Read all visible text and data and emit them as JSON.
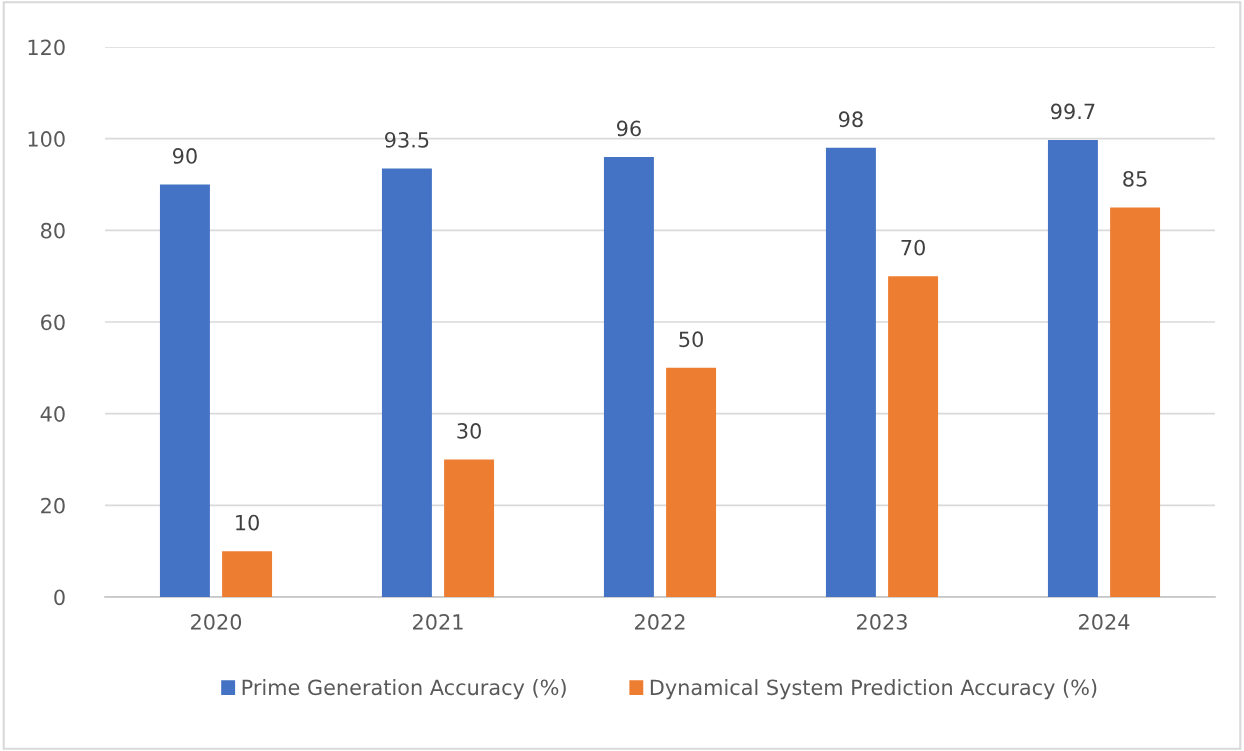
{
  "chart_data": {
    "type": "bar",
    "categories": [
      "2020",
      "2021",
      "2022",
      "2023",
      "2024"
    ],
    "series": [
      {
        "name": "Prime Generation Accuracy (%)",
        "color": "#4472c4",
        "values": [
          90,
          93.5,
          96,
          98,
          99.7
        ]
      },
      {
        "name": "Dynamical System Prediction Accuracy (%)",
        "color": "#ed7d31",
        "values": [
          10,
          30,
          50,
          70,
          85
        ]
      }
    ],
    "ylim": [
      0,
      120
    ],
    "yticks": [
      0,
      20,
      40,
      60,
      80,
      100,
      120
    ],
    "grid": "y",
    "legend": "bottom",
    "data_labels": true
  }
}
